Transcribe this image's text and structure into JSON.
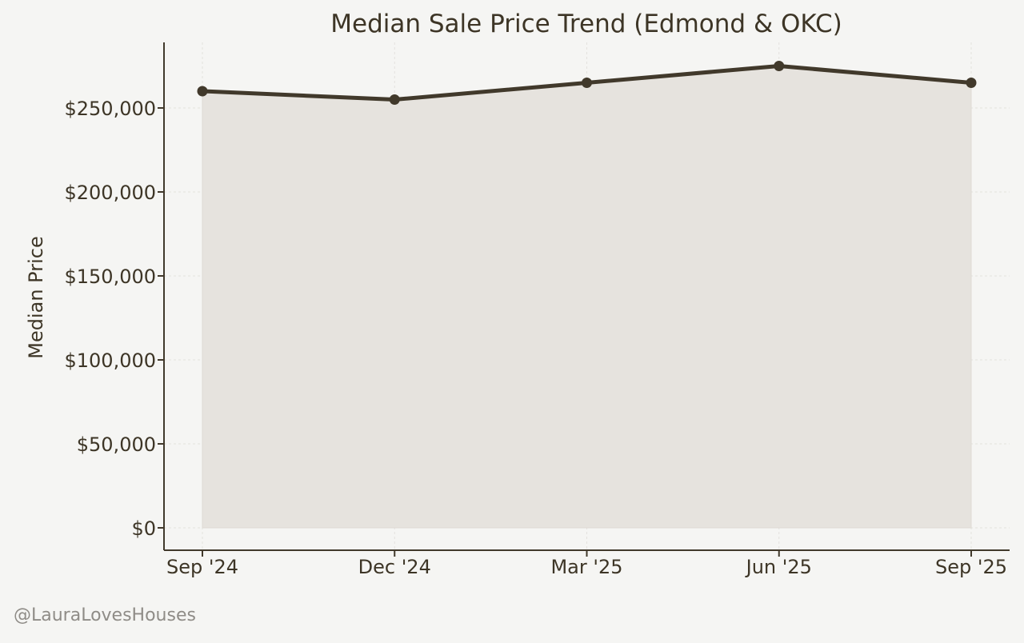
{
  "colors": {
    "background": "#f5f5f3",
    "line": "#41392b",
    "fill": "#e6e3de",
    "text": "#3d3526",
    "watermark": "#8f8c87"
  },
  "watermark": "@LauraLovesHouses",
  "chart_data": {
    "type": "area",
    "title": "Median Sale Price Trend (Edmond & OKC)",
    "xlabel": "",
    "ylabel": "Median Price",
    "categories": [
      "Sep '24",
      "Dec '24",
      "Mar '25",
      "Jun '25",
      "Sep '25"
    ],
    "values": [
      260000,
      255000,
      265000,
      275000,
      265000
    ],
    "ylim": [
      0,
      290000
    ],
    "yticks": [
      0,
      50000,
      100000,
      150000,
      200000,
      250000
    ],
    "ytick_labels": [
      "$0",
      "$50,000",
      "$100,000",
      "$150,000",
      "$200,000",
      "$250,000"
    ],
    "markers": true,
    "grid": true,
    "legend": "none"
  }
}
